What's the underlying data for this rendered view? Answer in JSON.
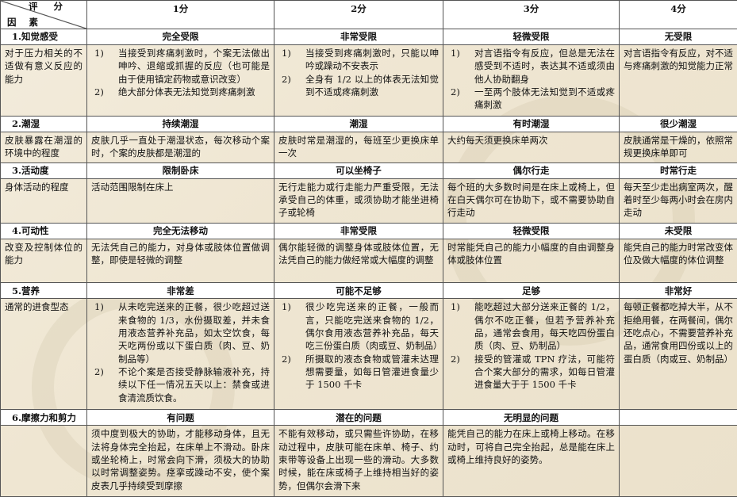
{
  "header": {
    "corner_top": "评 分",
    "corner_bottom": "因 素",
    "scores": [
      "1分",
      "2分",
      "3分",
      "4分"
    ]
  },
  "sections": [
    {
      "factor": "1.知觉感受",
      "levels": [
        "完全受限",
        "非常受限",
        "轻微受限",
        "无受限"
      ],
      "description": "对于压力相关的不适做有意义反应的能力",
      "cells": [
        [
          {
            "n": "1)",
            "t": "当接受到疼痛刺激时，个案无法做出呻吟、退缩或抓握的反应（也可能是由于使用镇定药物或意识改变）"
          },
          {
            "n": "2)",
            "t": "绝大部分体表无法知觉到疼痛刺激"
          }
        ],
        [
          {
            "n": "1)",
            "t": "当接受到疼痛刺激时，只能以呻吟或躁动不安表示"
          },
          {
            "n": "2)",
            "t": "全身有 1/2 以上的体表无法知觉到不适或疼痛刺激"
          }
        ],
        [
          {
            "n": "1)",
            "t": "对言语指令有反应，但总是无法在感受到不适时，表达其不适或须由他人协助翻身"
          },
          {
            "n": "2)",
            "t": "一至两个肢体无法知觉到不适或疼痛刺激"
          }
        ],
        [
          {
            "n": "",
            "t": "对言语指令有反应，对不适与疼痛刺激的知觉能力正常"
          }
        ]
      ]
    },
    {
      "factor": "2.潮湿",
      "levels": [
        "持续潮湿",
        "潮湿",
        "有时潮湿",
        "很少潮湿"
      ],
      "description": "皮肤暴露在潮湿的环境中的程度",
      "cells": [
        [
          {
            "n": "",
            "t": "皮肤几乎一直处于潮湿状态，每次移动个案时，个案的皮肤都是潮湿的"
          }
        ],
        [
          {
            "n": "",
            "t": "皮肤时常是潮湿的，每班至少更换床单一次"
          }
        ],
        [
          {
            "n": "",
            "t": "大约每天须更换床单两次"
          }
        ],
        [
          {
            "n": "",
            "t": "皮肤通常是干燥的，依照常规更换床单即可"
          }
        ]
      ]
    },
    {
      "factor": "3.活动度",
      "levels": [
        "限制卧床",
        "可以坐椅子",
        "偶尔行走",
        "时常行走"
      ],
      "description": "身体活动的程度",
      "cells": [
        [
          {
            "n": "",
            "t": "活动范围限制在床上"
          }
        ],
        [
          {
            "n": "",
            "t": "无行走能力或行走能力严重受限，无法承受自己的体重，或须协助才能坐进椅子或轮椅"
          }
        ],
        [
          {
            "n": "",
            "t": "每个班的大多数时间是在床上或椅上，但在白天偶尔可在协助下，或不需要协助自行走动"
          }
        ],
        [
          {
            "n": "",
            "t": "每天至少走出病室两次，醒着时至少每两小时会在房内走动"
          }
        ]
      ]
    },
    {
      "factor": "4.可动性",
      "levels": [
        "完全无法移动",
        "非常受限",
        "轻微受限",
        "未受限"
      ],
      "description": "改变及控制体位的能力",
      "cells": [
        [
          {
            "n": "",
            "t": "无法凭自己的能力，对身体或肢体位置做调整，即使是轻微的调整"
          }
        ],
        [
          {
            "n": "",
            "t": "偶尔能轻微的调整身体或肢体位置，无法凭自己的能力做经常或大幅度的调整"
          }
        ],
        [
          {
            "n": "",
            "t": "时常能凭自己的能力小幅度的自由调整身体或肢体位置"
          }
        ],
        [
          {
            "n": "",
            "t": "能凭自己的能力时常改变体位及做大幅度的体位调整"
          }
        ]
      ]
    },
    {
      "factor": "5.营养",
      "levels": [
        "非常差",
        "可能不足够",
        "足够",
        "非常好"
      ],
      "description": "通常的进食型态",
      "cells": [
        [
          {
            "n": "1)",
            "t": "从未吃完送来的正餐，很少吃超过送来食物的 1/3，水份摄取差，并未食用液态营养补充品，如太空饮食，每天吃两份或以下蛋白质（肉、豆、奶制品等）"
          },
          {
            "n": "2)",
            "t": "不论个案是否接受静脉输液补充，持续以下任一情况五天以上：禁食或进食清流质饮食。"
          }
        ],
        [
          {
            "n": "1)",
            "t": "很少吃完送来的正餐，一般而言，只能吃完送来食物的 1/2，偶尔食用液态营养补充品，每天吃三份蛋白质（肉或豆、奶制品）"
          },
          {
            "n": "2)",
            "t": "所摄取的液态食物或管灌未达理想需要量，如每日管灌进食量少于 1500 千卡"
          }
        ],
        [
          {
            "n": "1)",
            "t": "能吃超过大部分送来正餐的 1/2，偶尔不吃正餐，但若予营养补充品，通常会食用，每天吃四份蛋白质（肉、豆、奶制品）"
          },
          {
            "n": "2)",
            "t": "接受的管灌或 TPN 疗法，可能符合个案大部分的需求，如每日管灌进食量大于于 1500 千卡"
          }
        ],
        [
          {
            "n": "",
            "t": "每顿正餐都吃掉大半，从不拒绝用餐，在两餐间，偶尔还吃点心，不需要营养补充品，通常食用四份或以上的蛋白质（肉或豆、奶制品）"
          }
        ]
      ]
    },
    {
      "factor": "6.摩擦力和剪力",
      "levels": [
        "有问题",
        "潜在的问题",
        "无明显的问题",
        ""
      ],
      "description": "",
      "cells": [
        [
          {
            "n": "",
            "t": "须中度到极大的协助，才能移动身体，且无法将身体完全抬起，在床单上不滑动。卧床或坐轮椅上，时常会向下滑，须极大的协助以时常调整姿势。痉挛或躁动不安，使个案皮表几乎持续受到摩擦"
          }
        ],
        [
          {
            "n": "",
            "t": "不能有效移动，或只需些许协助，在移动过程中，皮肤可能在床单、椅子、约束带等设备上出现一些的滑动。大多数时候，能在床或椅子上维持相当好的姿势，但偶尔会滑下来"
          }
        ],
        [
          {
            "n": "",
            "t": "能凭自己的能力在床上或椅上移动。在移动时，可将自己完全抬起，总是能在床上或椅上维持良好的姿势。"
          }
        ],
        []
      ]
    }
  ]
}
